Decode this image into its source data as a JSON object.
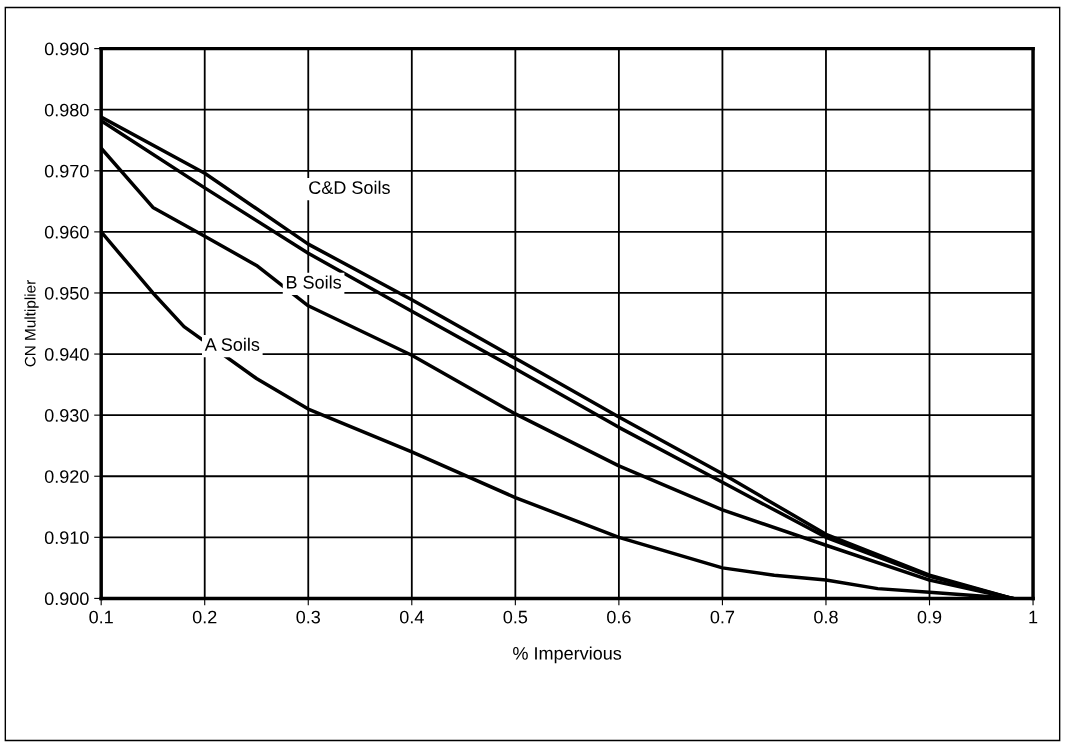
{
  "chart_data": {
    "type": "line",
    "xlabel": "% Impervious",
    "ylabel": "CN Multiplier",
    "xlim": [
      0.1,
      1
    ],
    "xticks": [
      0.1,
      0.2,
      0.3,
      0.4,
      0.5,
      0.6,
      0.7,
      0.8,
      0.9,
      1
    ],
    "ylim": [
      0.9,
      0.99
    ],
    "yticks": [
      {
        "value": 0.9,
        "label": "0.900"
      },
      {
        "value": 0.91,
        "label": "0.910"
      },
      {
        "value": 0.92,
        "label": "0.920"
      },
      {
        "value": 0.93,
        "label": "0.930"
      },
      {
        "value": 0.94,
        "label": "0.940"
      },
      {
        "value": 0.95,
        "label": "0.950"
      },
      {
        "value": 0.96,
        "label": "0.960"
      },
      {
        "value": 0.97,
        "label": "0.970"
      },
      {
        "value": 0.98,
        "label": "0.980"
      },
      {
        "value": 0.99,
        "label": "0.990"
      }
    ],
    "grid": true,
    "marker": "none",
    "line_style": "solid",
    "series": [
      {
        "name": "C&D Soils",
        "color": "#000000",
        "x": [
          0.1,
          0.2,
          0.3,
          0.4,
          0.5,
          0.6,
          0.7,
          0.8,
          0.9,
          0.98
        ],
        "values": [
          0.9788,
          0.9696,
          0.958,
          0.9489,
          0.9393,
          0.9297,
          0.9204,
          0.9105,
          0.9038,
          0.9
        ]
      },
      {
        "color": "#000000",
        "x": [
          0.1,
          0.2,
          0.3,
          0.4,
          0.5,
          0.6,
          0.7,
          0.8,
          0.9,
          0.98
        ],
        "values": [
          0.9782,
          0.9672,
          0.9565,
          0.947,
          0.9376,
          0.928,
          0.919,
          0.91,
          0.9036,
          0.9
        ]
      },
      {
        "name": "B Soils",
        "color": "#000000",
        "x": [
          0.1,
          0.15,
          0.2,
          0.25,
          0.3,
          0.4,
          0.5,
          0.6,
          0.7,
          0.8,
          0.9,
          0.98
        ],
        "values": [
          0.9737,
          0.964,
          0.9593,
          0.9545,
          0.9479,
          0.9398,
          0.9302,
          0.9217,
          0.9145,
          0.9087,
          0.903,
          0.9
        ]
      },
      {
        "name": "A Soils",
        "color": "#000000",
        "x": [
          0.1,
          0.15,
          0.18,
          0.25,
          0.3,
          0.4,
          0.5,
          0.6,
          0.7,
          0.75,
          0.8,
          0.85,
          0.9,
          0.98
        ],
        "values": [
          0.96,
          0.95,
          0.9445,
          0.936,
          0.931,
          0.924,
          0.9165,
          0.91,
          0.905,
          0.9038,
          0.903,
          0.9016,
          0.901,
          0.9
        ]
      }
    ]
  }
}
